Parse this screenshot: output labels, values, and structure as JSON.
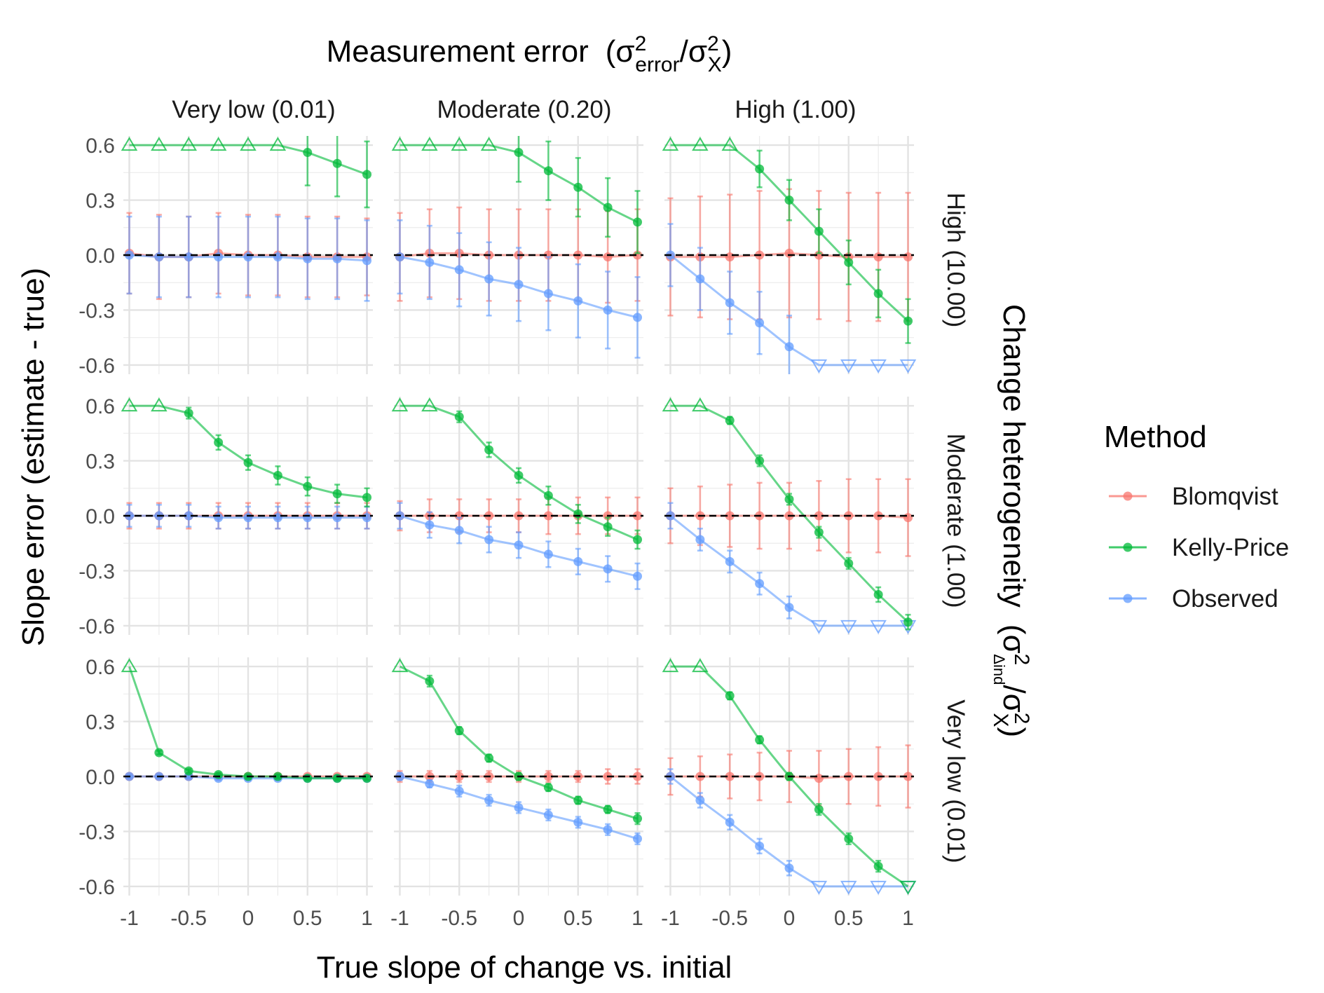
{
  "title": {
    "main": "Measurement error",
    "formula": "(σ²error/σ²X)"
  },
  "column_labels": [
    "Very low (0.01)",
    "Moderate (0.20)",
    "High (1.00)"
  ],
  "row_labels": [
    "High (10.00)",
    "Moderate (1.00)",
    "Very low (0.01)"
  ],
  "right_title": {
    "main": "Change heterogeneity",
    "formula": "(σ²Δind/σ²X)"
  },
  "y_axis_label": "Slope error (estimate - true)",
  "x_axis_label": "True slope of change vs. initial",
  "legend": {
    "title": "Method",
    "items": [
      {
        "label": "Blomqvist",
        "color": "#F8766D"
      },
      {
        "label": "Kelly-Price",
        "color": "#00BA38"
      },
      {
        "label": "Observed",
        "color": "#619CFF"
      }
    ]
  },
  "chart_data": {
    "type": "line",
    "facets": "3x3 grid: rows = change heterogeneity, columns = measurement error",
    "x": [
      -1,
      -0.75,
      -0.5,
      -0.25,
      0,
      0.25,
      0.5,
      0.75,
      1
    ],
    "x_ticks": [
      -1,
      -0.5,
      0,
      0.5,
      1
    ],
    "x_tick_labels": [
      "-1",
      "-0.5",
      "0",
      "0.5",
      "1"
    ],
    "y_ticks": [
      -0.6,
      -0.3,
      0,
      0.3,
      0.6
    ],
    "y_tick_labels": [
      "-0.6",
      "-0.3",
      "0.0",
      "0.3",
      "0.6"
    ],
    "ylim": [
      -0.65,
      0.65
    ],
    "xlim": [
      -1.05,
      1.05
    ],
    "reference_line": 0,
    "clip_note": "values beyond ±0.6 are drawn as hollow triangles at the limit",
    "panels": [
      {
        "row": "High (10.00)",
        "col": "Very low (0.01)",
        "series": [
          {
            "name": "Blomqvist",
            "values": [
              0.01,
              -0.01,
              -0.01,
              0.01,
              0,
              0,
              -0.01,
              -0.01,
              -0.01
            ],
            "err": [
              0.22,
              0.23,
              0.22,
              0.22,
              0.22,
              0.22,
              0.22,
              0.22,
              0.21
            ]
          },
          {
            "name": "Kelly-Price",
            "values": [
              0.6,
              0.6,
              0.6,
              0.6,
              0.6,
              0.6,
              0.56,
              0.5,
              0.44
            ],
            "err": [
              0,
              0,
              0,
              0,
              0,
              0,
              0.18,
              0.18,
              0.18
            ],
            "clipped": [
              true,
              true,
              true,
              true,
              true,
              true,
              false,
              false,
              false
            ]
          },
          {
            "name": "Observed",
            "values": [
              0,
              -0.01,
              -0.01,
              -0.01,
              -0.01,
              -0.01,
              -0.02,
              -0.02,
              -0.03
            ],
            "err": [
              0.21,
              0.22,
              0.22,
              0.22,
              0.22,
              0.22,
              0.22,
              0.22,
              0.22
            ]
          }
        ]
      },
      {
        "row": "High (10.00)",
        "col": "Moderate (0.20)",
        "series": [
          {
            "name": "Blomqvist",
            "values": [
              -0.01,
              0.01,
              0.01,
              0,
              0,
              0,
              0,
              -0.01,
              0
            ],
            "err": [
              0.24,
              0.24,
              0.25,
              0.25,
              0.25,
              0.25,
              0.25,
              0.25,
              0.25
            ]
          },
          {
            "name": "Kelly-Price",
            "values": [
              0.6,
              0.6,
              0.6,
              0.6,
              0.56,
              0.46,
              0.37,
              0.26,
              0.18
            ],
            "err": [
              0,
              0,
              0,
              0,
              0.16,
              0.16,
              0.16,
              0.16,
              0.17
            ],
            "clipped": [
              true,
              true,
              true,
              true,
              false,
              false,
              false,
              false,
              false
            ]
          },
          {
            "name": "Observed",
            "values": [
              -0.01,
              -0.04,
              -0.08,
              -0.13,
              -0.16,
              -0.21,
              -0.25,
              -0.3,
              -0.34
            ],
            "err": [
              0.2,
              0.2,
              0.2,
              0.2,
              0.2,
              0.2,
              0.2,
              0.21,
              0.22
            ]
          }
        ]
      },
      {
        "row": "High (10.00)",
        "col": "High (1.00)",
        "series": [
          {
            "name": "Blomqvist",
            "values": [
              -0.01,
              -0.01,
              -0.01,
              0,
              0.01,
              0,
              -0.01,
              -0.01,
              -0.01
            ],
            "err": [
              0.32,
              0.33,
              0.34,
              0.35,
              0.35,
              0.35,
              0.35,
              0.35,
              0.35
            ]
          },
          {
            "name": "Kelly-Price",
            "values": [
              0.6,
              0.6,
              0.6,
              0.47,
              0.3,
              0.13,
              -0.04,
              -0.21,
              -0.36
            ],
            "err": [
              0,
              0,
              0,
              0.1,
              0.11,
              0.12,
              0.12,
              0.13,
              0.12
            ],
            "clipped": [
              true,
              true,
              true,
              false,
              false,
              false,
              false,
              false,
              false
            ]
          },
          {
            "name": "Observed",
            "values": [
              0,
              -0.13,
              -0.26,
              -0.37,
              -0.5,
              -0.6,
              -0.6,
              -0.6,
              -0.6
            ],
            "err": [
              0.17,
              0.17,
              0.17,
              0.17,
              0.17,
              0.15,
              0,
              0,
              0
            ],
            "clipped": [
              false,
              false,
              false,
              false,
              false,
              true,
              true,
              true,
              true
            ]
          }
        ]
      },
      {
        "row": "Moderate (1.00)",
        "col": "Very low (0.01)",
        "series": [
          {
            "name": "Blomqvist",
            "values": [
              0,
              0,
              0,
              0,
              0,
              0,
              0,
              0,
              0
            ],
            "err": [
              0.07,
              0.07,
              0.07,
              0.07,
              0.07,
              0.07,
              0.07,
              0.07,
              0.07
            ]
          },
          {
            "name": "Kelly-Price",
            "values": [
              0.6,
              0.6,
              0.56,
              0.4,
              0.29,
              0.22,
              0.16,
              0.12,
              0.1
            ],
            "err": [
              0,
              0,
              0.03,
              0.04,
              0.04,
              0.05,
              0.05,
              0.05,
              0.05
            ],
            "clipped": [
              true,
              true,
              false,
              false,
              false,
              false,
              false,
              false,
              false
            ]
          },
          {
            "name": "Observed",
            "values": [
              0,
              0,
              0,
              -0.01,
              -0.01,
              -0.01,
              -0.01,
              -0.01,
              -0.01
            ],
            "err": [
              0.06,
              0.06,
              0.06,
              0.06,
              0.06,
              0.06,
              0.06,
              0.06,
              0.06
            ]
          }
        ]
      },
      {
        "row": "Moderate (1.00)",
        "col": "Moderate (0.20)",
        "series": [
          {
            "name": "Blomqvist",
            "values": [
              0,
              0,
              0,
              0,
              0,
              0,
              0,
              0,
              0
            ],
            "err": [
              0.08,
              0.09,
              0.09,
              0.09,
              0.09,
              0.1,
              0.1,
              0.1,
              0.1
            ]
          },
          {
            "name": "Kelly-Price",
            "values": [
              0.6,
              0.6,
              0.54,
              0.36,
              0.22,
              0.11,
              0.01,
              -0.06,
              -0.13
            ],
            "err": [
              0,
              0,
              0.03,
              0.04,
              0.04,
              0.05,
              0.05,
              0.05,
              0.05
            ],
            "clipped": [
              true,
              true,
              false,
              false,
              false,
              false,
              false,
              false,
              false
            ]
          },
          {
            "name": "Observed",
            "values": [
              0,
              -0.05,
              -0.08,
              -0.13,
              -0.16,
              -0.21,
              -0.25,
              -0.29,
              -0.33
            ],
            "err": [
              0.07,
              0.07,
              0.07,
              0.07,
              0.07,
              0.07,
              0.07,
              0.07,
              0.07
            ]
          }
        ]
      },
      {
        "row": "Moderate (1.00)",
        "col": "High (1.00)",
        "series": [
          {
            "name": "Blomqvist",
            "values": [
              0,
              0,
              0,
              0,
              0,
              0,
              0,
              0,
              -0.01
            ],
            "err": [
              0.15,
              0.16,
              0.17,
              0.18,
              0.18,
              0.19,
              0.2,
              0.2,
              0.21
            ]
          },
          {
            "name": "Kelly-Price",
            "values": [
              0.6,
              0.6,
              0.52,
              0.3,
              0.09,
              -0.09,
              -0.26,
              -0.43,
              -0.58
            ],
            "err": [
              0,
              0,
              0.02,
              0.03,
              0.03,
              0.03,
              0.03,
              0.04,
              0.04
            ],
            "clipped": [
              true,
              true,
              false,
              false,
              false,
              false,
              false,
              false,
              false
            ]
          },
          {
            "name": "Observed",
            "values": [
              0,
              -0.13,
              -0.25,
              -0.37,
              -0.5,
              -0.6,
              -0.6,
              -0.6,
              -0.6
            ],
            "err": [
              0.07,
              0.06,
              0.06,
              0.06,
              0.06,
              0.05,
              0,
              0,
              0
            ],
            "clipped": [
              false,
              false,
              false,
              false,
              false,
              true,
              true,
              true,
              true
            ]
          }
        ]
      },
      {
        "row": "Very low (0.01)",
        "col": "Very low (0.01)",
        "series": [
          {
            "name": "Blomqvist",
            "values": [
              0,
              0,
              0,
              0,
              0,
              0,
              0,
              0,
              0
            ],
            "err": [
              0.01,
              0.01,
              0.01,
              0.01,
              0.01,
              0.01,
              0.01,
              0.01,
              0.01
            ]
          },
          {
            "name": "Kelly-Price",
            "values": [
              0.6,
              0.13,
              0.03,
              0.01,
              0,
              0,
              -0.01,
              -0.01,
              -0.01
            ],
            "err": [
              0,
              0.01,
              0.01,
              0.01,
              0.01,
              0.01,
              0.01,
              0.01,
              0.01
            ],
            "clipped": [
              true,
              false,
              false,
              false,
              false,
              false,
              false,
              false,
              false
            ]
          },
          {
            "name": "Observed",
            "values": [
              0,
              0,
              0,
              -0.01,
              -0.01,
              -0.01,
              -0.01,
              -0.01,
              -0.01
            ],
            "err": [
              0.01,
              0.01,
              0.01,
              0.01,
              0.01,
              0.01,
              0.01,
              0.01,
              0.01
            ]
          }
        ]
      },
      {
        "row": "Very low (0.01)",
        "col": "Moderate (0.20)",
        "series": [
          {
            "name": "Blomqvist",
            "values": [
              0,
              0,
              0,
              0,
              0,
              0,
              0,
              0,
              0
            ],
            "err": [
              0.03,
              0.03,
              0.03,
              0.03,
              0.03,
              0.03,
              0.03,
              0.04,
              0.04
            ]
          },
          {
            "name": "Kelly-Price",
            "values": [
              0.6,
              0.52,
              0.25,
              0.1,
              0,
              -0.06,
              -0.13,
              -0.18,
              -0.23
            ],
            "err": [
              0,
              0.03,
              0.02,
              0.02,
              0.02,
              0.02,
              0.02,
              0.02,
              0.03
            ],
            "clipped": [
              true,
              false,
              false,
              false,
              false,
              false,
              false,
              false,
              false
            ]
          },
          {
            "name": "Observed",
            "values": [
              0,
              -0.04,
              -0.08,
              -0.13,
              -0.17,
              -0.21,
              -0.25,
              -0.29,
              -0.34
            ],
            "err": [
              0.02,
              0.02,
              0.03,
              0.03,
              0.03,
              0.03,
              0.03,
              0.03,
              0.03
            ]
          }
        ]
      },
      {
        "row": "Very low (0.01)",
        "col": "High (1.00)",
        "series": [
          {
            "name": "Blomqvist",
            "values": [
              0,
              0,
              0,
              0,
              0,
              -0.01,
              0,
              0,
              0
            ],
            "err": [
              0.1,
              0.11,
              0.12,
              0.13,
              0.14,
              0.15,
              0.15,
              0.16,
              0.17
            ]
          },
          {
            "name": "Kelly-Price",
            "values": [
              0.6,
              0.6,
              0.44,
              0.2,
              0,
              -0.18,
              -0.34,
              -0.49,
              -0.6
            ],
            "err": [
              0,
              0,
              0.02,
              0.02,
              0.02,
              0.03,
              0.03,
              0.03,
              0
            ],
            "clipped": [
              true,
              true,
              false,
              false,
              false,
              false,
              false,
              false,
              true
            ]
          },
          {
            "name": "Observed",
            "values": [
              0,
              -0.13,
              -0.25,
              -0.38,
              -0.5,
              -0.6,
              -0.6,
              -0.6,
              -0.6
            ],
            "err": [
              0.04,
              0.04,
              0.04,
              0.04,
              0.04,
              0.03,
              0,
              0,
              0
            ],
            "clipped": [
              false,
              false,
              false,
              false,
              false,
              true,
              true,
              true,
              true
            ]
          }
        ]
      }
    ]
  }
}
